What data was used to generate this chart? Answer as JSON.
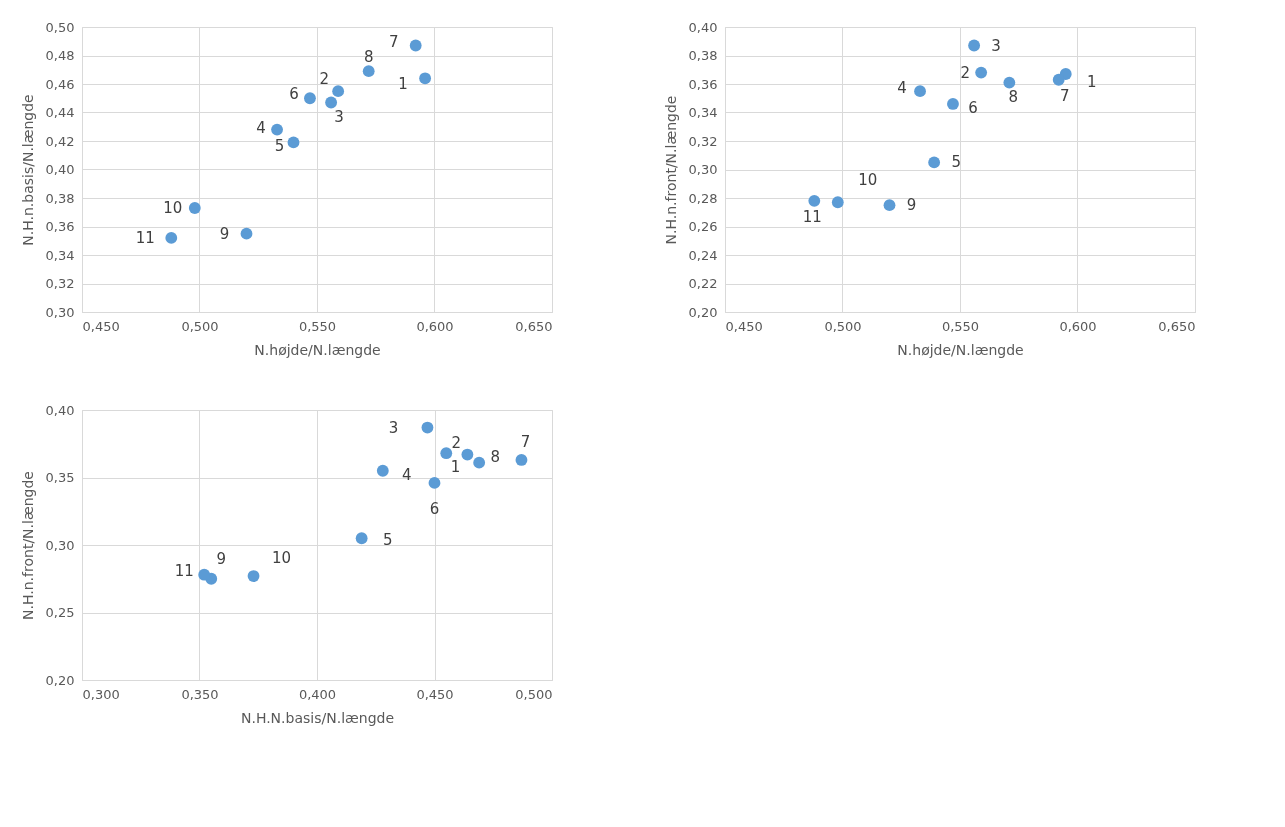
{
  "chart_data": [
    {
      "type": "scatter",
      "xlabel": "N.højde/N.længde",
      "ylabel": "N.H.n.basis/N.længde",
      "marker": "circle",
      "grid": true,
      "x": [
        0.596,
        0.559,
        0.556,
        0.533,
        0.54,
        0.547,
        0.592,
        0.572,
        0.52,
        0.498,
        0.488
      ],
      "series": [
        {
          "color": "#5b9bd5",
          "values": [
            0.464,
            0.455,
            0.447,
            0.428,
            0.419,
            0.45,
            0.487,
            0.469,
            0.355,
            0.373,
            0.352
          ]
        }
      ],
      "xlim": [
        0.45,
        0.65
      ],
      "xticks": [
        {
          "value": 0.45,
          "label": "0,450"
        },
        {
          "value": 0.5,
          "label": "0,500"
        },
        {
          "value": 0.55,
          "label": "0,550"
        },
        {
          "value": 0.6,
          "label": "0,600"
        },
        {
          "value": 0.65,
          "label": "0,650"
        }
      ],
      "ylim": [
        0.3,
        0.5
      ],
      "yticks": [
        {
          "value": 0.3,
          "label": "0,30"
        },
        {
          "value": 0.32,
          "label": "0,32"
        },
        {
          "value": 0.34,
          "label": "0,34"
        },
        {
          "value": 0.36,
          "label": "0,36"
        },
        {
          "value": 0.38,
          "label": "0,38"
        },
        {
          "value": 0.4,
          "label": "0,40"
        },
        {
          "value": 0.42,
          "label": "0,42"
        },
        {
          "value": 0.44,
          "label": "0,44"
        },
        {
          "value": 0.46,
          "label": "0,46"
        },
        {
          "value": 0.48,
          "label": "0,48"
        },
        {
          "value": 0.5,
          "label": "0,50"
        }
      ],
      "annotations": [
        {
          "text": "1",
          "x": 0.596,
          "y": 0.464
        },
        {
          "text": "2",
          "x": 0.559,
          "y": 0.455
        },
        {
          "text": "3",
          "x": 0.556,
          "y": 0.447
        },
        {
          "text": "4",
          "x": 0.533,
          "y": 0.428
        },
        {
          "text": "5",
          "x": 0.54,
          "y": 0.419
        },
        {
          "text": "6",
          "x": 0.547,
          "y": 0.45
        },
        {
          "text": "7",
          "x": 0.592,
          "y": 0.487
        },
        {
          "text": "8",
          "x": 0.572,
          "y": 0.469
        },
        {
          "text": "9",
          "x": 0.52,
          "y": 0.355
        },
        {
          "text": "10",
          "x": 0.498,
          "y": 0.373
        },
        {
          "text": "11",
          "x": 0.488,
          "y": 0.352
        }
      ]
    },
    {
      "type": "scatter",
      "xlabel": "N.højde/N.længde",
      "ylabel": "N.H.n.front/N.længde",
      "marker": "circle",
      "grid": true,
      "x": [
        0.595,
        0.559,
        0.556,
        0.533,
        0.539,
        0.547,
        0.592,
        0.571,
        0.52,
        0.498,
        0.488
      ],
      "series": [
        {
          "color": "#5b9bd5",
          "values": [
            0.367,
            0.368,
            0.387,
            0.355,
            0.305,
            0.346,
            0.363,
            0.361,
            0.275,
            0.277,
            0.278
          ]
        }
      ],
      "xlim": [
        0.45,
        0.65
      ],
      "xticks": [
        {
          "value": 0.45,
          "label": "0,450"
        },
        {
          "value": 0.5,
          "label": "0,500"
        },
        {
          "value": 0.55,
          "label": "0,550"
        },
        {
          "value": 0.6,
          "label": "0,600"
        },
        {
          "value": 0.65,
          "label": "0,650"
        }
      ],
      "ylim": [
        0.2,
        0.4
      ],
      "yticks": [
        {
          "value": 0.2,
          "label": "0,20"
        },
        {
          "value": 0.22,
          "label": "0,22"
        },
        {
          "value": 0.24,
          "label": "0,24"
        },
        {
          "value": 0.26,
          "label": "0,26"
        },
        {
          "value": 0.28,
          "label": "0,28"
        },
        {
          "value": 0.3,
          "label": "0,30"
        },
        {
          "value": 0.32,
          "label": "0,32"
        },
        {
          "value": 0.34,
          "label": "0,34"
        },
        {
          "value": 0.36,
          "label": "0,36"
        },
        {
          "value": 0.38,
          "label": "0,38"
        },
        {
          "value": 0.4,
          "label": "0,40"
        }
      ],
      "annotations": [
        {
          "text": "1",
          "x": 0.595,
          "y": 0.367
        },
        {
          "text": "2",
          "x": 0.559,
          "y": 0.368
        },
        {
          "text": "3",
          "x": 0.556,
          "y": 0.387
        },
        {
          "text": "4",
          "x": 0.533,
          "y": 0.355
        },
        {
          "text": "5",
          "x": 0.539,
          "y": 0.305
        },
        {
          "text": "6",
          "x": 0.547,
          "y": 0.346
        },
        {
          "text": "7",
          "x": 0.592,
          "y": 0.363
        },
        {
          "text": "8",
          "x": 0.571,
          "y": 0.361
        },
        {
          "text": "9",
          "x": 0.52,
          "y": 0.275
        },
        {
          "text": "10",
          "x": 0.498,
          "y": 0.277
        },
        {
          "text": "11",
          "x": 0.488,
          "y": 0.278
        }
      ]
    },
    {
      "type": "scatter",
      "xlabel": "N.H.N.basis/N.længde",
      "ylabel": "N.H.n.front/N.længde",
      "marker": "circle",
      "grid": true,
      "x": [
        0.464,
        0.455,
        0.447,
        0.428,
        0.419,
        0.45,
        0.487,
        0.469,
        0.355,
        0.373,
        0.352
      ],
      "series": [
        {
          "color": "#5b9bd5",
          "values": [
            0.367,
            0.368,
            0.387,
            0.355,
            0.305,
            0.346,
            0.363,
            0.361,
            0.275,
            0.277,
            0.278
          ]
        }
      ],
      "xlim": [
        0.3,
        0.5
      ],
      "xticks": [
        {
          "value": 0.3,
          "label": "0,300"
        },
        {
          "value": 0.35,
          "label": "0,350"
        },
        {
          "value": 0.4,
          "label": "0,400"
        },
        {
          "value": 0.45,
          "label": "0,450"
        },
        {
          "value": 0.5,
          "label": "0,500"
        }
      ],
      "ylim": [
        0.2,
        0.4
      ],
      "yticks": [
        {
          "value": 0.2,
          "label": "0,20"
        },
        {
          "value": 0.25,
          "label": "0,25"
        },
        {
          "value": 0.3,
          "label": "0,30"
        },
        {
          "value": 0.35,
          "label": "0,35"
        },
        {
          "value": 0.4,
          "label": "0,40"
        }
      ],
      "annotations": [
        {
          "text": "1",
          "x": 0.464,
          "y": 0.367
        },
        {
          "text": "2",
          "x": 0.455,
          "y": 0.368
        },
        {
          "text": "3",
          "x": 0.447,
          "y": 0.387
        },
        {
          "text": "4",
          "x": 0.428,
          "y": 0.355
        },
        {
          "text": "5",
          "x": 0.419,
          "y": 0.305
        },
        {
          "text": "6",
          "x": 0.45,
          "y": 0.346
        },
        {
          "text": "7",
          "x": 0.487,
          "y": 0.363
        },
        {
          "text": "8",
          "x": 0.469,
          "y": 0.361
        },
        {
          "text": "9",
          "x": 0.355,
          "y": 0.275
        },
        {
          "text": "10",
          "x": 0.373,
          "y": 0.277
        },
        {
          "text": "11",
          "x": 0.352,
          "y": 0.278
        }
      ]
    }
  ]
}
